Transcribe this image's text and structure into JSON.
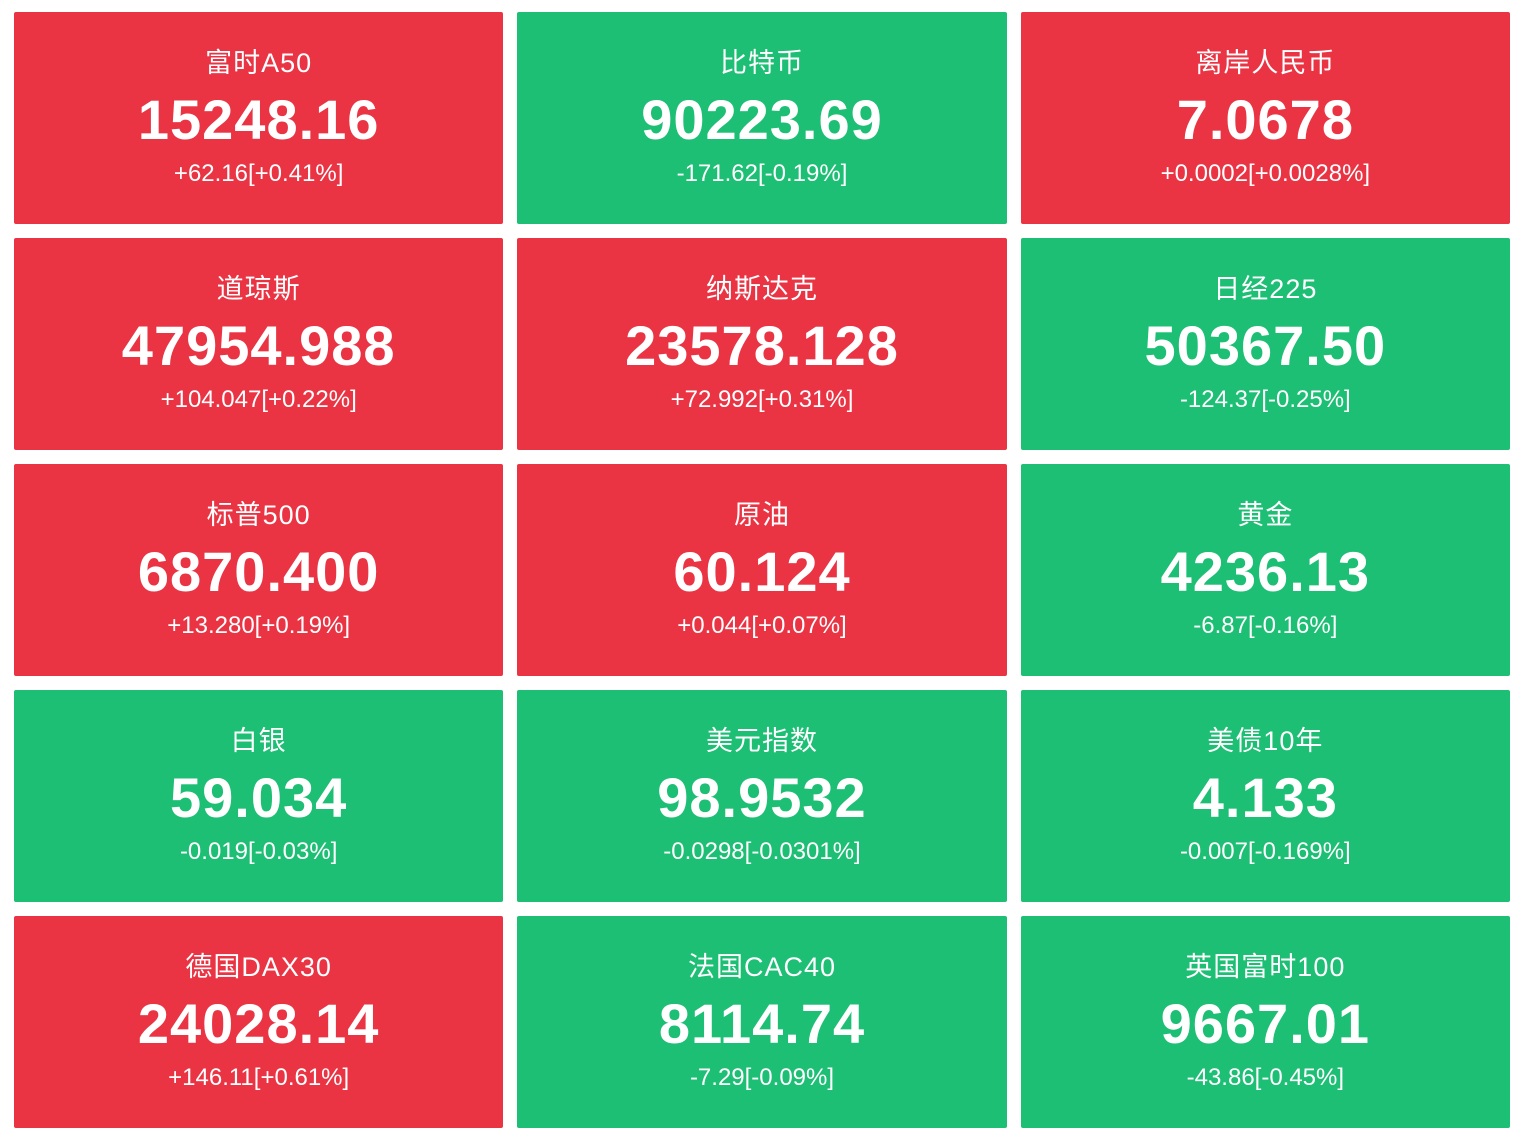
{
  "colors": {
    "up": "#ea3444",
    "down": "#1dbf74",
    "text": "#ffffff",
    "page_background": "#ffffff"
  },
  "tiles": [
    {
      "name": "富时A50",
      "price": "15248.16",
      "change": "+62.16[+0.41%]",
      "direction": "up"
    },
    {
      "name": "比特币",
      "price": "90223.69",
      "change": "-171.62[-0.19%]",
      "direction": "down"
    },
    {
      "name": "离岸人民币",
      "price": "7.0678",
      "change": "+0.0002[+0.0028%]",
      "direction": "up"
    },
    {
      "name": "道琼斯",
      "price": "47954.988",
      "change": "+104.047[+0.22%]",
      "direction": "up"
    },
    {
      "name": "纳斯达克",
      "price": "23578.128",
      "change": "+72.992[+0.31%]",
      "direction": "up"
    },
    {
      "name": "日经225",
      "price": "50367.50",
      "change": "-124.37[-0.25%]",
      "direction": "down"
    },
    {
      "name": "标普500",
      "price": "6870.400",
      "change": "+13.280[+0.19%]",
      "direction": "up"
    },
    {
      "name": "原油",
      "price": "60.124",
      "change": "+0.044[+0.07%]",
      "direction": "up"
    },
    {
      "name": "黄金",
      "price": "4236.13",
      "change": "-6.87[-0.16%]",
      "direction": "down"
    },
    {
      "name": "白银",
      "price": "59.034",
      "change": "-0.019[-0.03%]",
      "direction": "down"
    },
    {
      "name": "美元指数",
      "price": "98.9532",
      "change": "-0.0298[-0.0301%]",
      "direction": "down"
    },
    {
      "name": "美债10年",
      "price": "4.133",
      "change": "-0.007[-0.169%]",
      "direction": "down"
    },
    {
      "name": "德国DAX30",
      "price": "24028.14",
      "change": "+146.11[+0.61%]",
      "direction": "up"
    },
    {
      "name": "法国CAC40",
      "price": "8114.74",
      "change": "-7.29[-0.09%]",
      "direction": "down"
    },
    {
      "name": "英国富时100",
      "price": "9667.01",
      "change": "-43.86[-0.45%]",
      "direction": "down"
    }
  ]
}
